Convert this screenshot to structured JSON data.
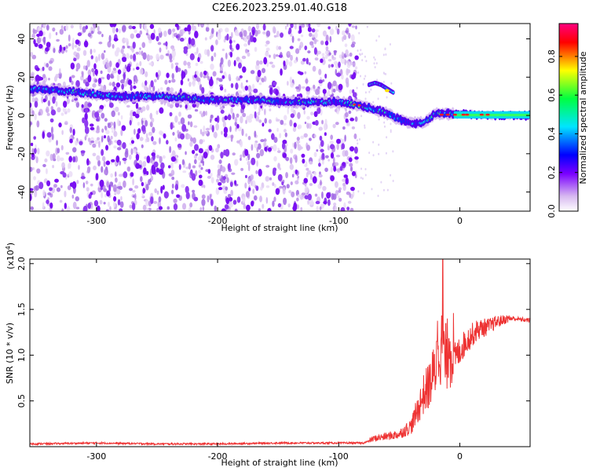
{
  "title": "C2E6.2023.259.01.40.G18",
  "chart_data": [
    {
      "type": "heatmap",
      "xlabel": "Height of straight line (km)",
      "ylabel": "Frequency (Hz)",
      "xlim": [
        -355,
        58
      ],
      "ylim": [
        -50,
        48
      ],
      "x_ticks": [
        -300,
        -200,
        -100,
        0
      ],
      "y_ticks": [
        -40,
        -20,
        0,
        20,
        40
      ],
      "colorbar": {
        "label": "Normalized spectral amplitude",
        "range": [
          0,
          0.97
        ],
        "ticks": [
          0.0,
          0.2,
          0.4,
          0.6,
          0.8
        ],
        "colormap": [
          "#ffffff",
          "#d7b8f0",
          "#7a00ff",
          "#0000ff",
          "#00e5ff",
          "#00ff40",
          "#ffff00",
          "#ff0000",
          "#ff0080"
        ]
      },
      "ridge": {
        "x": [
          -355,
          -330,
          -300,
          -280,
          -250,
          -220,
          -200,
          -170,
          -140,
          -120,
          -100,
          -90,
          -80,
          -70,
          -60,
          -50,
          -40,
          -30,
          -20,
          -10,
          0,
          20,
          40,
          58
        ],
        "frequency": [
          14,
          13,
          11,
          10,
          10,
          9,
          8,
          8,
          7,
          7,
          7,
          6,
          5,
          3,
          1,
          -2,
          -4,
          -4,
          1,
          1,
          1,
          0,
          0,
          0
        ]
      },
      "branch": {
        "x": [
          -75,
          -70,
          -65,
          -60,
          -55
        ],
        "frequency": [
          16,
          17,
          16,
          14,
          12
        ]
      }
    },
    {
      "type": "line",
      "xlabel": "Height of straight line (km)",
      "ylabel": "SNR (10 * v/v)",
      "y_multiplier": "(x10^4)",
      "xlim": [
        -355,
        58
      ],
      "ylim": [
        0,
        2.05
      ],
      "x_ticks": [
        -300,
        -200,
        -100,
        0
      ],
      "y_ticks": [
        0.5,
        1.0,
        1.5,
        2.0
      ],
      "color": "#ee3333",
      "series": [
        {
          "x": [
            -355,
            -300,
            -250,
            -200,
            -150,
            -100,
            -80,
            -70,
            -60,
            -50,
            -40,
            -35,
            -30,
            -25,
            -20,
            -18,
            -15,
            -12,
            -10,
            -5,
            0,
            5,
            10,
            15,
            20,
            25,
            30,
            35,
            40,
            45,
            50,
            58
          ],
          "values": [
            0.03,
            0.04,
            0.03,
            0.03,
            0.04,
            0.04,
            0.04,
            0.08,
            0.1,
            0.12,
            0.2,
            0.35,
            0.5,
            0.6,
            0.75,
            1.0,
            0.95,
            0.85,
            0.9,
            0.95,
            1.05,
            1.15,
            1.22,
            1.28,
            1.3,
            1.32,
            1.36,
            1.38,
            1.4,
            1.4,
            1.39,
            1.38
          ]
        }
      ],
      "peaks": [
        {
          "x": -19,
          "value": 1.15
        },
        {
          "x": -14,
          "value": 2.05
        },
        {
          "x": -9,
          "value": 1.18
        }
      ]
    }
  ]
}
